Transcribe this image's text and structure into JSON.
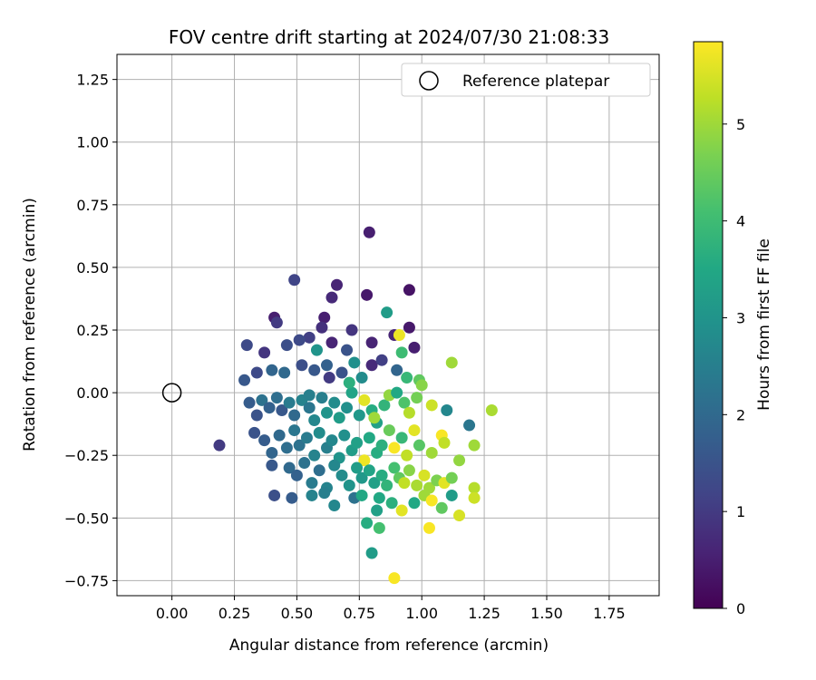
{
  "chart_data": {
    "type": "scatter",
    "title": "FOV centre drift starting at 2024/07/30 21:08:33",
    "xlabel": "Angular distance from reference (arcmin)",
    "ylabel": "Rotation from reference (arcmin)",
    "xlim": [
      -0.22,
      1.95
    ],
    "ylim": [
      -0.81,
      1.35
    ],
    "xticks": [
      "0.00",
      "0.25",
      "0.50",
      "0.75",
      "1.00",
      "1.25",
      "1.50",
      "1.75"
    ],
    "yticks": [
      "−0.75",
      "−0.50",
      "−0.25",
      "0.00",
      "0.25",
      "0.50",
      "0.75",
      "1.00",
      "1.25"
    ],
    "grid": true,
    "legend": {
      "position": "top-right",
      "entries": [
        "Reference platepar"
      ]
    },
    "colorbar": {
      "label": "Hours from first FF file",
      "ticks": [
        "0",
        "1",
        "2",
        "3",
        "4",
        "5"
      ],
      "range": [
        0,
        5.85
      ],
      "colormap": "viridis"
    },
    "reference_point": {
      "x": 0.0,
      "y": 0.0
    },
    "points": [
      [
        0.79,
        0.64,
        0.5
      ],
      [
        0.49,
        0.45,
        1.2
      ],
      [
        0.78,
        0.39,
        0.4
      ],
      [
        0.95,
        0.41,
        0.3
      ],
      [
        0.66,
        0.43,
        0.6
      ],
      [
        0.41,
        0.3,
        0.5
      ],
      [
        0.64,
        0.38,
        0.7
      ],
      [
        0.61,
        0.3,
        0.5
      ],
      [
        0.86,
        0.32,
        3.2
      ],
      [
        0.89,
        0.23,
        0.6
      ],
      [
        0.91,
        0.23,
        5.7
      ],
      [
        0.95,
        0.26,
        0.4
      ],
      [
        0.8,
        0.2,
        0.6
      ],
      [
        0.97,
        0.18,
        0.5
      ],
      [
        0.42,
        0.28,
        1.0
      ],
      [
        0.6,
        0.26,
        0.8
      ],
      [
        0.55,
        0.22,
        1.1
      ],
      [
        0.72,
        0.25,
        0.9
      ],
      [
        0.3,
        0.19,
        1.3
      ],
      [
        0.37,
        0.16,
        0.9
      ],
      [
        0.46,
        0.19,
        1.4
      ],
      [
        0.51,
        0.21,
        1.3
      ],
      [
        0.64,
        0.2,
        0.6
      ],
      [
        0.58,
        0.17,
        3.0
      ],
      [
        0.7,
        0.17,
        1.5
      ],
      [
        0.92,
        0.16,
        4.0
      ],
      [
        1.12,
        0.12,
        5.0
      ],
      [
        0.29,
        0.05,
        1.6
      ],
      [
        0.34,
        0.08,
        1.3
      ],
      [
        0.4,
        0.09,
        1.9
      ],
      [
        0.45,
        0.08,
        2.0
      ],
      [
        0.52,
        0.11,
        1.4
      ],
      [
        0.57,
        0.09,
        1.6
      ],
      [
        0.62,
        0.11,
        1.8
      ],
      [
        0.68,
        0.08,
        1.5
      ],
      [
        0.73,
        0.12,
        2.9
      ],
      [
        0.8,
        0.11,
        0.7
      ],
      [
        0.84,
        0.13,
        1.1
      ],
      [
        0.9,
        0.09,
        1.9
      ],
      [
        0.94,
        0.06,
        3.9
      ],
      [
        0.99,
        0.05,
        4.4
      ],
      [
        0.31,
        -0.04,
        1.7
      ],
      [
        0.34,
        -0.09,
        1.5
      ],
      [
        0.36,
        -0.03,
        2.2
      ],
      [
        0.39,
        -0.06,
        1.8
      ],
      [
        0.42,
        -0.02,
        2.1
      ],
      [
        0.44,
        -0.07,
        1.6
      ],
      [
        0.47,
        -0.04,
        2.4
      ],
      [
        0.49,
        -0.09,
        2.0
      ],
      [
        0.52,
        -0.03,
        2.6
      ],
      [
        0.55,
        -0.06,
        2.3
      ],
      [
        0.57,
        -0.11,
        2.7
      ],
      [
        0.6,
        -0.02,
        2.5
      ],
      [
        0.62,
        -0.08,
        3.0
      ],
      [
        0.65,
        -0.04,
        2.8
      ],
      [
        0.67,
        -0.1,
        3.2
      ],
      [
        0.7,
        -0.06,
        2.9
      ],
      [
        0.72,
        0.0,
        3.4
      ],
      [
        0.75,
        -0.09,
        3.1
      ],
      [
        0.77,
        -0.03,
        5.6
      ],
      [
        0.8,
        -0.07,
        3.6
      ],
      [
        0.82,
        -0.12,
        3.3
      ],
      [
        0.85,
        -0.05,
        3.8
      ],
      [
        0.87,
        -0.01,
        4.9
      ],
      [
        0.9,
        0.0,
        3.5
      ],
      [
        0.93,
        -0.04,
        4.2
      ],
      [
        0.95,
        -0.08,
        5.2
      ],
      [
        0.98,
        -0.02,
        4.6
      ],
      [
        1.0,
        0.03,
        4.8
      ],
      [
        1.04,
        -0.05,
        5.4
      ],
      [
        1.08,
        -0.17,
        5.8
      ],
      [
        1.1,
        -0.07,
        2.7
      ],
      [
        1.19,
        -0.13,
        2.3
      ],
      [
        1.28,
        -0.07,
        5.1
      ],
      [
        0.33,
        -0.16,
        1.5
      ],
      [
        0.37,
        -0.19,
        1.7
      ],
      [
        0.4,
        -0.24,
        1.9
      ],
      [
        0.43,
        -0.17,
        2.0
      ],
      [
        0.46,
        -0.22,
        2.1
      ],
      [
        0.49,
        -0.15,
        2.3
      ],
      [
        0.51,
        -0.21,
        2.2
      ],
      [
        0.54,
        -0.18,
        2.4
      ],
      [
        0.57,
        -0.25,
        2.6
      ],
      [
        0.59,
        -0.16,
        2.8
      ],
      [
        0.62,
        -0.22,
        2.5
      ],
      [
        0.64,
        -0.19,
        2.7
      ],
      [
        0.67,
        -0.26,
        3.0
      ],
      [
        0.69,
        -0.17,
        2.9
      ],
      [
        0.72,
        -0.23,
        3.2
      ],
      [
        0.74,
        -0.2,
        3.3
      ],
      [
        0.77,
        -0.27,
        5.7
      ],
      [
        0.79,
        -0.18,
        3.5
      ],
      [
        0.82,
        -0.24,
        3.6
      ],
      [
        0.84,
        -0.21,
        3.7
      ],
      [
        0.87,
        -0.15,
        4.5
      ],
      [
        0.89,
        -0.22,
        5.8
      ],
      [
        0.92,
        -0.18,
        3.9
      ],
      [
        0.94,
        -0.25,
        5.3
      ],
      [
        0.97,
        -0.15,
        5.6
      ],
      [
        0.99,
        -0.21,
        4.3
      ],
      [
        1.04,
        -0.24,
        5.0
      ],
      [
        1.09,
        -0.2,
        5.3
      ],
      [
        1.15,
        -0.27,
        4.9
      ],
      [
        1.21,
        -0.21,
        5.0
      ],
      [
        0.19,
        -0.21,
        1.0
      ],
      [
        0.4,
        -0.29,
        1.6
      ],
      [
        0.47,
        -0.3,
        2.0
      ],
      [
        0.5,
        -0.33,
        1.8
      ],
      [
        0.53,
        -0.28,
        2.2
      ],
      [
        0.56,
        -0.36,
        2.4
      ],
      [
        0.59,
        -0.31,
        2.1
      ],
      [
        0.62,
        -0.38,
        2.6
      ],
      [
        0.65,
        -0.29,
        2.7
      ],
      [
        0.68,
        -0.33,
        2.8
      ],
      [
        0.71,
        -0.37,
        3.0
      ],
      [
        0.74,
        -0.3,
        3.2
      ],
      [
        0.76,
        -0.34,
        3.1
      ],
      [
        0.79,
        -0.31,
        3.4
      ],
      [
        0.81,
        -0.36,
        3.3
      ],
      [
        0.84,
        -0.33,
        3.6
      ],
      [
        0.86,
        -0.37,
        3.8
      ],
      [
        0.89,
        -0.3,
        4.1
      ],
      [
        0.91,
        -0.34,
        4.4
      ],
      [
        0.93,
        -0.36,
        5.3
      ],
      [
        0.95,
        -0.31,
        4.8
      ],
      [
        0.98,
        -0.37,
        5.1
      ],
      [
        1.01,
        -0.33,
        5.5
      ],
      [
        1.03,
        -0.38,
        5.0
      ],
      [
        1.06,
        -0.35,
        4.7
      ],
      [
        1.09,
        -0.36,
        5.6
      ],
      [
        1.12,
        -0.34,
        4.6
      ],
      [
        1.21,
        -0.38,
        5.2
      ],
      [
        0.41,
        -0.41,
        1.4
      ],
      [
        0.48,
        -0.42,
        1.7
      ],
      [
        0.56,
        -0.41,
        2.6
      ],
      [
        0.61,
        -0.4,
        2.5
      ],
      [
        0.65,
        -0.45,
        2.7
      ],
      [
        0.73,
        -0.42,
        2.2
      ],
      [
        0.76,
        -0.41,
        3.5
      ],
      [
        0.83,
        -0.42,
        3.5
      ],
      [
        0.88,
        -0.44,
        3.7
      ],
      [
        0.92,
        -0.47,
        5.6
      ],
      [
        0.97,
        -0.44,
        3.5
      ],
      [
        1.01,
        -0.41,
        5.0
      ],
      [
        1.04,
        -0.43,
        5.8
      ],
      [
        1.08,
        -0.46,
        4.4
      ],
      [
        1.12,
        -0.41,
        3.2
      ],
      [
        1.21,
        -0.42,
        5.4
      ],
      [
        0.78,
        -0.52,
        3.6
      ],
      [
        0.82,
        -0.47,
        3.3
      ],
      [
        1.15,
        -0.49,
        5.5
      ],
      [
        0.83,
        -0.54,
        4.1
      ],
      [
        1.03,
        -0.54,
        5.8
      ],
      [
        0.8,
        -0.64,
        3.2
      ],
      [
        0.89,
        -0.74,
        5.8
      ],
      [
        0.55,
        -0.01,
        2.5
      ],
      [
        0.63,
        0.06,
        1.0
      ],
      [
        0.71,
        0.04,
        3.7
      ],
      [
        0.76,
        0.06,
        2.8
      ],
      [
        0.81,
        -0.1,
        5.0
      ]
    ]
  }
}
